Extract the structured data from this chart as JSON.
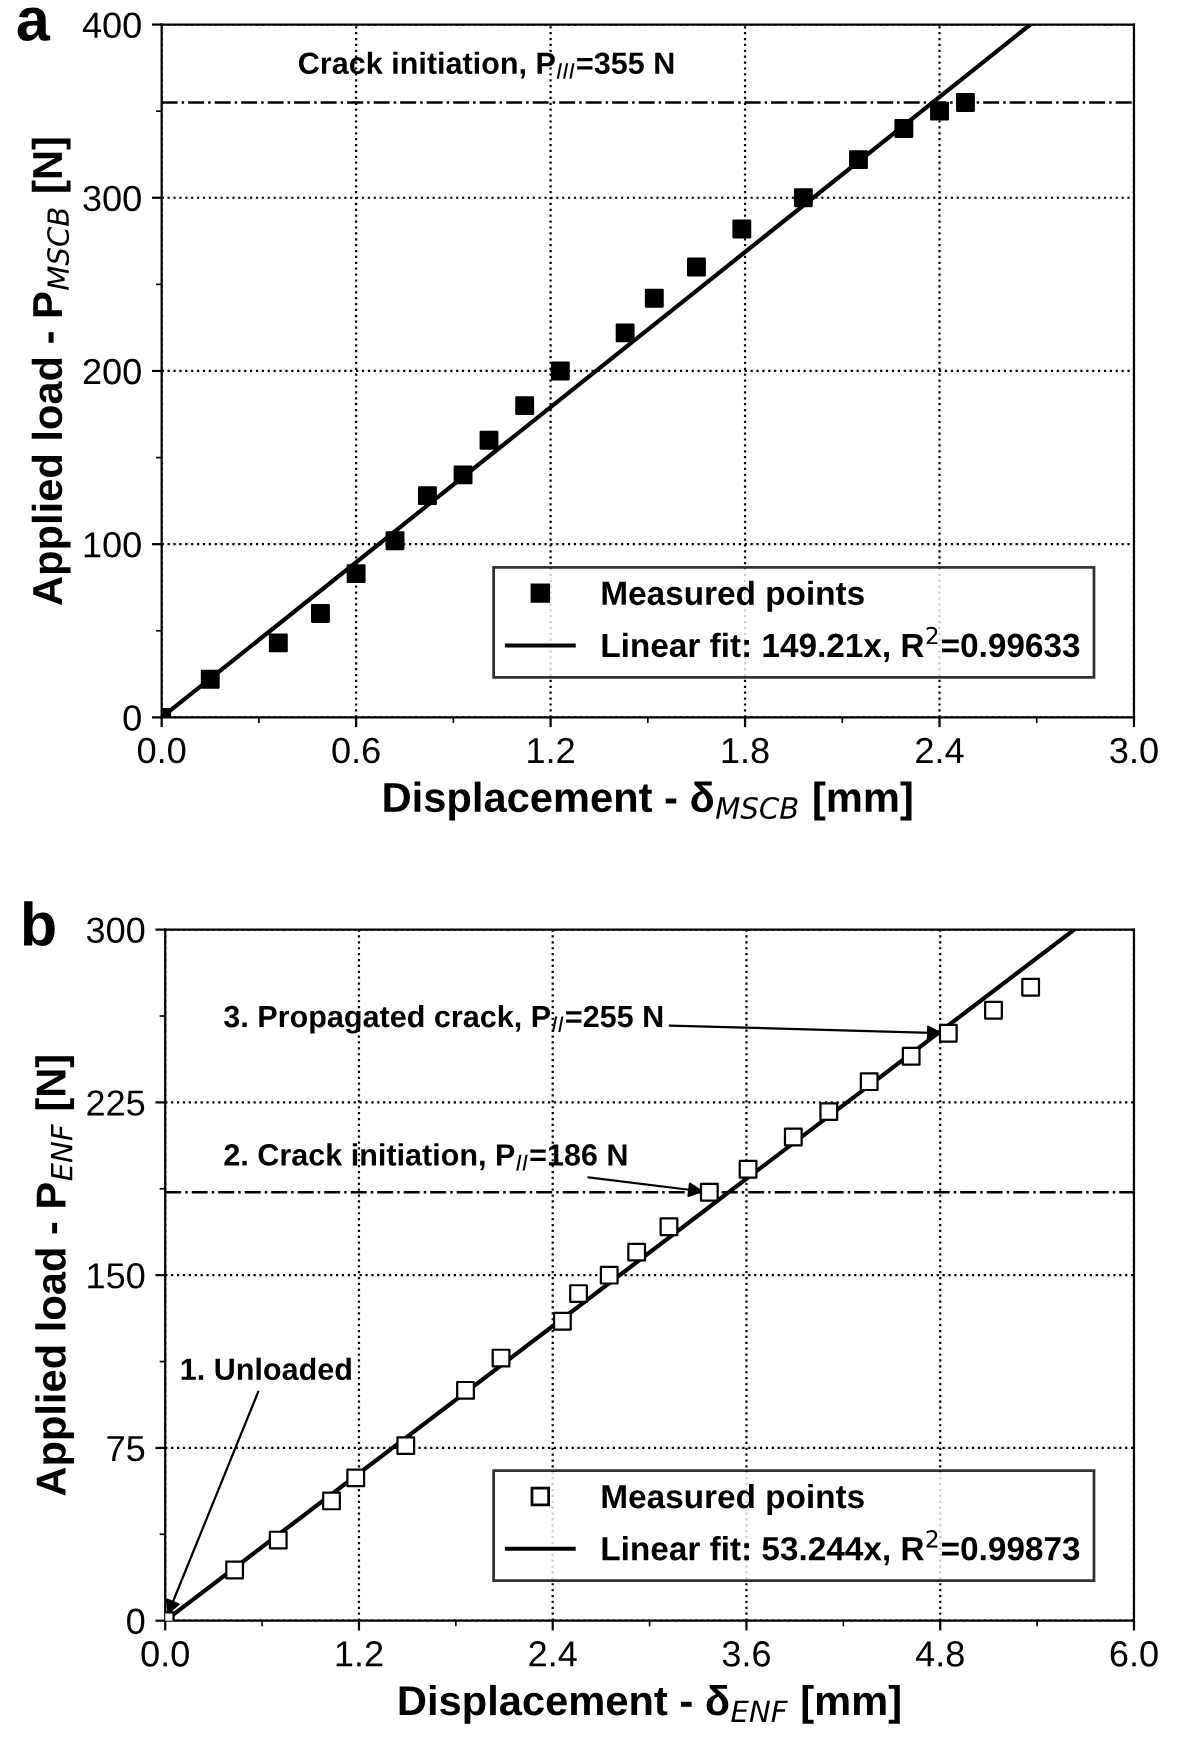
{
  "chart_data": [
    {
      "type": "scatter",
      "title": "a",
      "xlabel": "Displacement - δ$_{MSCB}$ [mm]",
      "ylabel": "Applied load - P$_{MSCB}$ [N]",
      "xlim": [
        0,
        3.0
      ],
      "xticks": [
        {
          "value": 0,
          "label": "0.0"
        },
        0.6,
        1.2,
        1.8,
        2.4,
        {
          "value": 3,
          "label": "3.0"
        }
      ],
      "ylim": [
        0,
        400
      ],
      "yticks": [
        0,
        100,
        200,
        300,
        400
      ],
      "grid": true,
      "legend": "bottom right",
      "ref_lines": [
        {
          "axis": "y",
          "value": 355,
          "label": "Crack initiation, P$_{III}$=355 N",
          "color": "#000000",
          "line_style": "dashdot"
        }
      ],
      "series": [
        {
          "name": "Measured points",
          "marker": "square",
          "color": "#000000",
          "x": [
            0,
            0.15,
            0.36,
            0.49,
            0.6,
            0.72,
            0.82,
            0.93,
            1.01,
            1.12,
            1.23,
            1.43,
            1.52,
            1.65,
            1.79,
            1.98,
            2.15,
            2.29,
            2.4,
            2.48
          ],
          "values": [
            0,
            22,
            43,
            60,
            83,
            102,
            128,
            140,
            160,
            180,
            200,
            222,
            242,
            260,
            282,
            300,
            322,
            340,
            350,
            355
          ]
        },
        {
          "name": "Linear fit: 149.21x, R$^{2}$=0.99633",
          "type": "line",
          "color": "#000000",
          "line_style": "solid",
          "x": [
            0,
            2.68
          ],
          "values": [
            0,
            400
          ]
        }
      ]
    },
    {
      "type": "scatter",
      "title": "b",
      "xlabel": "Displacement - δ$_{ENF}$ [mm]",
      "ylabel": "Applied load - P$_{ENF}$ [N]",
      "xlim": [
        0,
        6.0
      ],
      "xticks": [
        {
          "value": 0,
          "label": "0.0"
        },
        1.2,
        2.4,
        3.6,
        4.8,
        {
          "value": 6,
          "label": "6.0"
        }
      ],
      "ylim": [
        0,
        300
      ],
      "yticks": [
        0,
        75,
        150,
        225,
        300
      ],
      "grid": true,
      "legend": "bottom right",
      "ref_lines": [
        {
          "axis": "y",
          "value": 186,
          "color": "#000000",
          "line_style": "dashdot"
        }
      ],
      "annotations": [
        {
          "text": "3. Propagated crack, P$_{II}$=255 N",
          "x": 4.85,
          "y": 255
        },
        {
          "text": "2. Crack initiation, P$_{II}$=186 N",
          "x": 3.37,
          "y": 186
        },
        {
          "text": "1. Unloaded",
          "x": 0,
          "y": 0
        }
      ],
      "series": [
        {
          "name": "Measured points",
          "marker": "square",
          "color": "#ffffff",
          "x": [
            0,
            0.43,
            0.7,
            1.03,
            1.18,
            1.49,
            1.86,
            2.08,
            2.46,
            2.56,
            2.75,
            2.92,
            3.12,
            3.37,
            3.61,
            3.89,
            4.11,
            4.36,
            4.62,
            4.85,
            5.13,
            5.36
          ],
          "values": [
            0,
            22,
            35,
            52,
            62,
            76,
            100,
            114,
            130,
            142,
            150,
            160,
            171,
            186,
            196,
            210,
            221,
            234,
            245,
            255,
            265,
            275
          ]
        },
        {
          "name": "Linear fit: 53.244x, R$^{2}$=0.99873",
          "type": "line",
          "color": "#000000",
          "line_style": "solid",
          "x": [
            0,
            5.63
          ],
          "values": [
            0,
            300
          ]
        }
      ]
    }
  ]
}
